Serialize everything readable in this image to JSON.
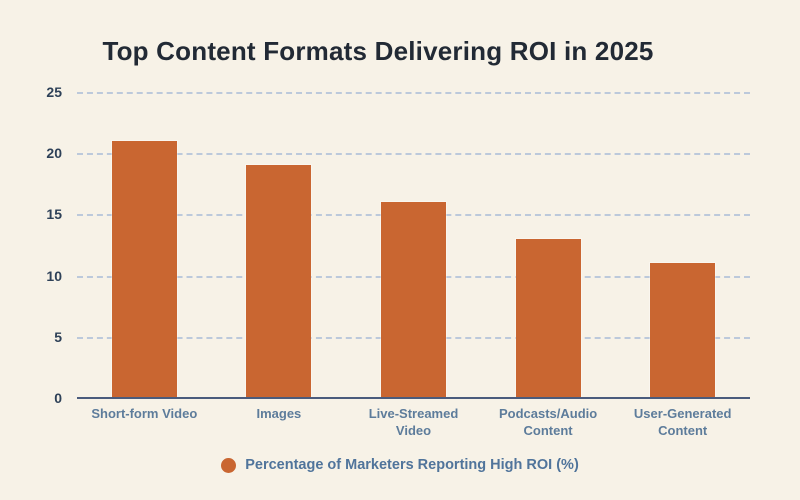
{
  "title": "Top Content Formats Delivering ROI in 2025",
  "legend": {
    "marker": "circle",
    "label": "Percentage of Marketers Reporting High ROI (%)"
  },
  "colors": {
    "background": "#F7F2E7",
    "bar": "#C96631",
    "gridline": "#BCC9DB",
    "axis_line": "#4A5B7C",
    "y_tick_label": "#2E4158",
    "x_tick_label": "#5D7C9B",
    "legend_text": "#50749B",
    "title_text": "#222A35"
  },
  "chart_data": {
    "type": "bar",
    "title": "Top Content Formats Delivering ROI in 2025",
    "categories": [
      "Short-form Video",
      "Images",
      "Live-Streamed Video",
      "Podcasts/Audio Content",
      "User-Generated Content"
    ],
    "category_labels": [
      "Short-form Video",
      "Images",
      "Live-Streamed\nVideo",
      "Podcasts/Audio\nContent",
      "User-Generated\nContent"
    ],
    "values": [
      21,
      19,
      16,
      13,
      11
    ],
    "series_name": "Percentage of Marketers Reporting High ROI (%)",
    "xlabel": "",
    "ylabel": "",
    "ylim": [
      0,
      25
    ],
    "y_ticks": [
      0,
      5,
      10,
      15,
      20,
      25
    ],
    "grid": "horizontal-dashed",
    "legend_position": "bottom",
    "bar_color": "#C96631"
  }
}
